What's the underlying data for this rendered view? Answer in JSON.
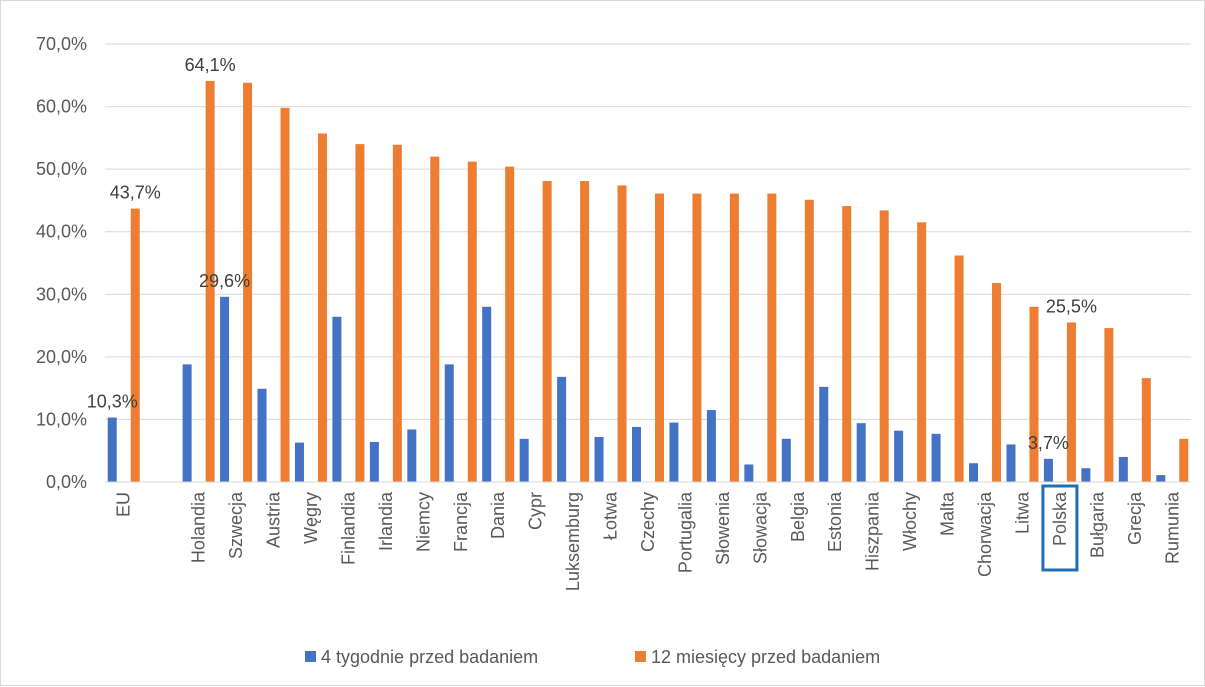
{
  "chart_data": {
    "type": "bar",
    "title": "",
    "xlabel": "",
    "ylabel": "",
    "ylim": [
      0,
      70
    ],
    "y_ticks": [
      0,
      10,
      20,
      30,
      40,
      50,
      60,
      70
    ],
    "y_tick_labels": [
      "0,0%",
      "10,0%",
      "20,0%",
      "30,0%",
      "40,0%",
      "50,0%",
      "60,0%",
      "70,0%"
    ],
    "grid": true,
    "legend_position": "bottom",
    "categories": [
      "EU",
      "",
      "Holandia",
      "Szwecja",
      "Austria",
      "Węgry",
      "Finlandia",
      "Irlandia",
      "Niemcy",
      "Francja",
      "Dania",
      "Cypr",
      "Luksemburg",
      "Łotwa",
      "Czechy",
      "Portugalia",
      "Słowenia",
      "Słowacja",
      "Belgia",
      "Estonia",
      "Hiszpania",
      "Włochy",
      "Malta",
      "Chorwacja",
      "Litwa",
      "Polska",
      "Bułgaria",
      "Grecja",
      "Rumunia"
    ],
    "highlighted_category": "Polska",
    "highlight_color": "#1f6fb5",
    "series": [
      {
        "name": "4 tygodnie przed badaniem",
        "color": "#4472c4",
        "values": [
          10.3,
          null,
          18.8,
          29.6,
          14.9,
          6.3,
          26.4,
          6.4,
          8.4,
          18.8,
          28.0,
          6.9,
          16.8,
          7.2,
          8.8,
          9.5,
          11.5,
          2.8,
          6.9,
          15.2,
          9.4,
          8.2,
          7.7,
          3.0,
          6.0,
          3.7,
          2.2,
          4.0,
          1.1
        ]
      },
      {
        "name": "12 miesięcy przed badaniem",
        "color": "#ed7d31",
        "values": [
          43.7,
          null,
          64.1,
          63.8,
          59.8,
          55.7,
          54.0,
          53.9,
          52.0,
          51.2,
          50.4,
          48.1,
          48.1,
          47.4,
          46.1,
          46.1,
          46.1,
          46.1,
          45.1,
          44.1,
          43.4,
          41.5,
          36.2,
          31.8,
          28.0,
          25.5,
          24.6,
          16.6,
          6.9
        ]
      }
    ],
    "data_labels": [
      {
        "category": "EU",
        "series": 0,
        "text": "10,3%"
      },
      {
        "category": "EU",
        "series": 1,
        "text": "43,7%"
      },
      {
        "category": "Holandia",
        "series": 1,
        "text": "64,1%"
      },
      {
        "category": "Szwecja",
        "series": 0,
        "text": "29,6%"
      },
      {
        "category": "Polska",
        "series": 0,
        "text": "3,7%"
      },
      {
        "category": "Polska",
        "series": 1,
        "text": "25,5%"
      }
    ]
  }
}
